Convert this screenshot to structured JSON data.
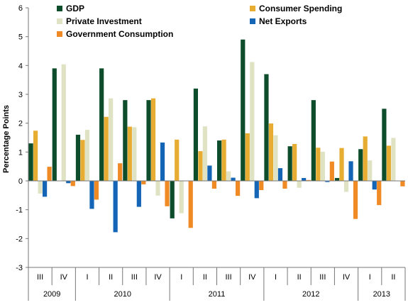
{
  "chart_data": {
    "type": "bar",
    "ylabel": "Percentage Points",
    "ylim": [
      -3,
      6
    ],
    "yticks": [
      -3,
      -2,
      -1,
      0,
      1,
      2,
      3,
      4,
      5,
      6
    ],
    "grid": false,
    "legend_position": "top",
    "categories": [
      "III",
      "IV",
      "I",
      "II",
      "III",
      "IV",
      "I",
      "II",
      "III",
      "IV",
      "I",
      "II",
      "III",
      "IV",
      "I",
      "II"
    ],
    "year_groups": [
      {
        "label": "2009",
        "span": 2
      },
      {
        "label": "2010",
        "span": 4
      },
      {
        "label": "2011",
        "span": 4
      },
      {
        "label": "2012",
        "span": 4
      },
      {
        "label": "2013",
        "span": 2
      }
    ],
    "series": [
      {
        "name": "GDP",
        "color": "#0e4d2c",
        "values": [
          1.3,
          3.9,
          1.6,
          3.9,
          2.8,
          2.8,
          -1.3,
          3.2,
          1.4,
          4.9,
          3.7,
          1.2,
          2.8,
          0.1,
          1.1,
          2.5
        ]
      },
      {
        "name": "Consumer Spending",
        "color": "#e6ad32",
        "values": [
          1.74,
          0.0,
          1.42,
          2.22,
          1.88,
          2.86,
          1.43,
          1.03,
          1.43,
          1.65,
          1.99,
          1.28,
          1.15,
          1.14,
          1.54,
          1.22
        ]
      },
      {
        "name": "Private Investment",
        "color": "#dfe3c3",
        "values": [
          -0.44,
          4.04,
          1.77,
          2.86,
          1.86,
          -0.51,
          -1.12,
          1.89,
          0.33,
          4.12,
          1.58,
          -0.24,
          1.01,
          -0.38,
          0.71,
          1.49
        ]
      },
      {
        "name": "Net Exports",
        "color": "#1565b7",
        "values": [
          -0.55,
          -0.08,
          -0.97,
          -1.78,
          -0.9,
          1.33,
          0.0,
          0.53,
          0.11,
          -0.6,
          0.44,
          0.1,
          -0.04,
          0.68,
          -0.3,
          0.0
        ]
      },
      {
        "name": "Government Consumption",
        "color": "#f08a24",
        "values": [
          0.49,
          -0.18,
          -0.65,
          0.61,
          -0.12,
          -0.88,
          -1.63,
          -0.27,
          -0.52,
          -0.32,
          -0.27,
          0.03,
          0.67,
          -1.32,
          -0.84,
          -0.19
        ]
      }
    ],
    "legend_rows": [
      [
        "GDP",
        "Consumer Spending"
      ],
      [
        "Private Investment",
        "Net Exports"
      ],
      [
        "Government Consumption"
      ]
    ]
  }
}
